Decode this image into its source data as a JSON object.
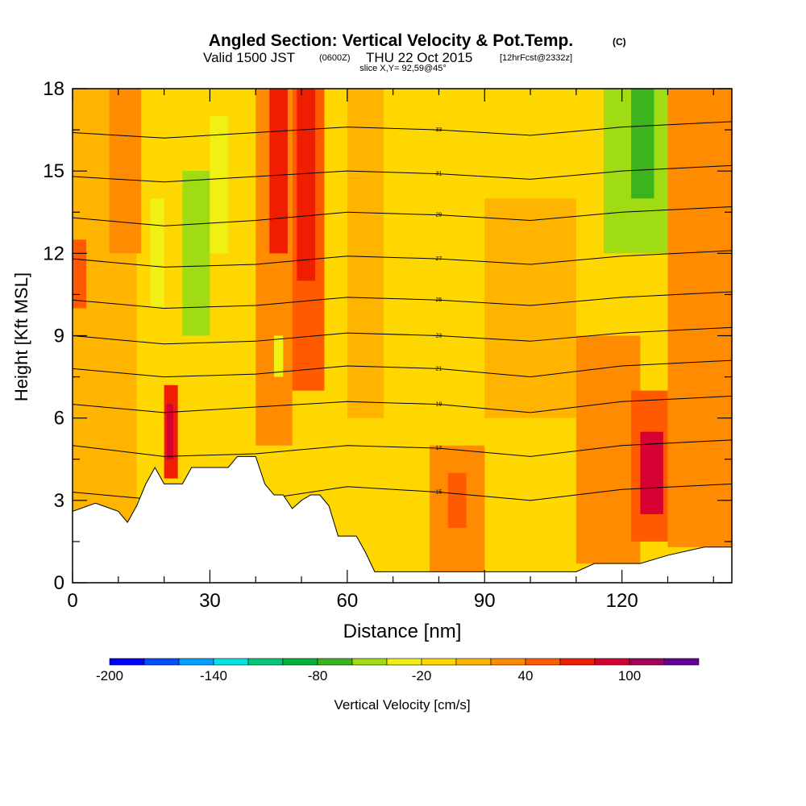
{
  "header": {
    "title": "Angled Section: Vertical Velocity & Pot.Temp.",
    "title_unit": "(C)",
    "valid_prefix": "Valid 1500 JST",
    "valid_utc": "(0600Z)",
    "valid_date": "THU 22 Oct 2015",
    "forecast": "[12hrFcst@2332z]",
    "slice": "slice X,Y= 92,59@45°"
  },
  "chart_data": {
    "type": "heatmap",
    "xlabel": "Distance [nm]",
    "ylabel": "Height [Kft MSL]",
    "xlim": [
      0,
      144
    ],
    "ylim": [
      0,
      18
    ],
    "xticks": [
      0,
      30,
      60,
      90,
      120
    ],
    "yticks": [
      0,
      3,
      6,
      9,
      12,
      15,
      18
    ],
    "colorbar": {
      "label": "Vertical Velocity [cm/s]",
      "range": [
        -200,
        130
      ],
      "step": 20,
      "tick_labels": [
        -200,
        -140,
        -80,
        -20,
        40,
        100
      ],
      "colors": [
        "#0000ff",
        "#0050ff",
        "#00a0ff",
        "#00e6e6",
        "#00c878",
        "#00b43c",
        "#3cb41e",
        "#a0dc14",
        "#f0f014",
        "#ffd700",
        "#ffb400",
        "#ff8c00",
        "#ff5a00",
        "#f01e00",
        "#d70032",
        "#a0005a",
        "#640096"
      ]
    },
    "terrain_height_kft": [
      [
        0,
        2.6
      ],
      [
        5,
        2.9
      ],
      [
        10,
        2.6
      ],
      [
        12,
        2.2
      ],
      [
        14,
        2.8
      ],
      [
        16,
        3.6
      ],
      [
        18,
        4.2
      ],
      [
        20,
        3.6
      ],
      [
        22,
        3.6
      ],
      [
        24,
        3.6
      ],
      [
        26,
        4.2
      ],
      [
        30,
        4.2
      ],
      [
        34,
        4.2
      ],
      [
        36,
        4.6
      ],
      [
        40,
        4.6
      ],
      [
        42,
        3.6
      ],
      [
        44,
        3.2
      ],
      [
        46,
        3.2
      ],
      [
        48,
        2.7
      ],
      [
        50,
        3.0
      ],
      [
        52,
        3.2
      ],
      [
        54,
        3.2
      ],
      [
        56,
        2.8
      ],
      [
        58,
        1.7
      ],
      [
        60,
        1.7
      ],
      [
        62,
        1.7
      ],
      [
        64,
        1.1
      ],
      [
        66,
        0.4
      ],
      [
        70,
        0.4
      ],
      [
        80,
        0.4
      ],
      [
        90,
        0.4
      ],
      [
        100,
        0.4
      ],
      [
        110,
        0.4
      ],
      [
        114,
        0.7
      ],
      [
        124,
        0.7
      ],
      [
        130,
        1.0
      ],
      [
        138,
        1.3
      ],
      [
        144,
        1.3
      ]
    ],
    "theta_contours": [
      {
        "label": "15",
        "points": [
          [
            0,
            3.3
          ],
          [
            20,
            3.0
          ],
          [
            40,
            3.0
          ],
          [
            60,
            3.5
          ],
          [
            80,
            3.3
          ],
          [
            100,
            3.0
          ],
          [
            120,
            3.4
          ],
          [
            144,
            3.6
          ]
        ]
      },
      {
        "label": "17",
        "points": [
          [
            0,
            5.0
          ],
          [
            20,
            4.6
          ],
          [
            40,
            4.7
          ],
          [
            60,
            5.0
          ],
          [
            80,
            4.9
          ],
          [
            100,
            4.6
          ],
          [
            120,
            5.0
          ],
          [
            144,
            5.2
          ]
        ]
      },
      {
        "label": "19",
        "points": [
          [
            0,
            6.5
          ],
          [
            20,
            6.2
          ],
          [
            40,
            6.4
          ],
          [
            60,
            6.6
          ],
          [
            80,
            6.5
          ],
          [
            100,
            6.2
          ],
          [
            120,
            6.6
          ],
          [
            144,
            6.8
          ]
        ]
      },
      {
        "label": "21",
        "points": [
          [
            0,
            7.8
          ],
          [
            20,
            7.5
          ],
          [
            40,
            7.6
          ],
          [
            60,
            7.9
          ],
          [
            80,
            7.8
          ],
          [
            100,
            7.5
          ],
          [
            120,
            7.9
          ],
          [
            144,
            8.1
          ]
        ]
      },
      {
        "label": "23",
        "points": [
          [
            0,
            9.0
          ],
          [
            20,
            8.7
          ],
          [
            40,
            8.8
          ],
          [
            60,
            9.1
          ],
          [
            80,
            9.0
          ],
          [
            100,
            8.8
          ],
          [
            120,
            9.1
          ],
          [
            144,
            9.3
          ]
        ]
      },
      {
        "label": "25",
        "points": [
          [
            0,
            10.3
          ],
          [
            20,
            10.0
          ],
          [
            40,
            10.1
          ],
          [
            60,
            10.4
          ],
          [
            80,
            10.3
          ],
          [
            100,
            10.1
          ],
          [
            120,
            10.4
          ],
          [
            144,
            10.6
          ]
        ]
      },
      {
        "label": "27",
        "points": [
          [
            0,
            11.8
          ],
          [
            20,
            11.5
          ],
          [
            40,
            11.6
          ],
          [
            60,
            11.9
          ],
          [
            80,
            11.8
          ],
          [
            100,
            11.6
          ],
          [
            120,
            11.9
          ],
          [
            144,
            12.1
          ]
        ]
      },
      {
        "label": "29",
        "points": [
          [
            0,
            13.3
          ],
          [
            20,
            13.0
          ],
          [
            40,
            13.2
          ],
          [
            60,
            13.5
          ],
          [
            80,
            13.4
          ],
          [
            100,
            13.2
          ],
          [
            120,
            13.5
          ],
          [
            144,
            13.7
          ]
        ]
      },
      {
        "label": "31",
        "points": [
          [
            0,
            14.8
          ],
          [
            20,
            14.6
          ],
          [
            40,
            14.8
          ],
          [
            60,
            15.0
          ],
          [
            80,
            14.9
          ],
          [
            100,
            14.7
          ],
          [
            120,
            15.0
          ],
          [
            144,
            15.2
          ]
        ]
      },
      {
        "label": "33",
        "points": [
          [
            0,
            16.4
          ],
          [
            20,
            16.2
          ],
          [
            40,
            16.4
          ],
          [
            60,
            16.6
          ],
          [
            80,
            16.5
          ],
          [
            100,
            16.3
          ],
          [
            120,
            16.6
          ],
          [
            144,
            16.8
          ]
        ]
      }
    ],
    "velocity_cells": [
      {
        "x0": 0,
        "x1": 144,
        "y0": 0,
        "y1": 18,
        "v": -20
      },
      {
        "x0": 0,
        "x1": 14,
        "y0": 0,
        "y1": 18,
        "v": 0
      },
      {
        "x0": 0,
        "x1": 3,
        "y0": 10,
        "y1": 12.5,
        "v": 40
      },
      {
        "x0": 8,
        "x1": 15,
        "y0": 12,
        "y1": 18,
        "v": 20
      },
      {
        "x0": 17,
        "x1": 20,
        "y0": 10,
        "y1": 14,
        "v": -40
      },
      {
        "x0": 20,
        "x1": 23,
        "y0": 3.8,
        "y1": 7.2,
        "v": 60
      },
      {
        "x0": 20.5,
        "x1": 22,
        "y0": 4.5,
        "y1": 6.5,
        "v": 80
      },
      {
        "x0": 24,
        "x1": 30,
        "y0": 9,
        "y1": 15,
        "v": -60
      },
      {
        "x0": 30,
        "x1": 34,
        "y0": 12,
        "y1": 17,
        "v": -40
      },
      {
        "x0": 40,
        "x1": 48,
        "y0": 5,
        "y1": 18,
        "v": 20
      },
      {
        "x0": 43,
        "x1": 47,
        "y0": 12,
        "y1": 18,
        "v": 60
      },
      {
        "x0": 48,
        "x1": 55,
        "y0": 7,
        "y1": 18,
        "v": 40
      },
      {
        "x0": 49,
        "x1": 53,
        "y0": 11,
        "y1": 18,
        "v": 60
      },
      {
        "x0": 44,
        "x1": 46,
        "y0": 7.5,
        "y1": 9,
        "v": -40
      },
      {
        "x0": 60,
        "x1": 68,
        "y0": 6,
        "y1": 18,
        "v": 0
      },
      {
        "x0": 68,
        "x1": 80,
        "y0": 8,
        "y1": 18,
        "v": -20
      },
      {
        "x0": 78,
        "x1": 90,
        "y0": 0.4,
        "y1": 5,
        "v": 20
      },
      {
        "x0": 82,
        "x1": 86,
        "y0": 2,
        "y1": 4,
        "v": 40
      },
      {
        "x0": 90,
        "x1": 110,
        "y0": 6,
        "y1": 14,
        "v": 0
      },
      {
        "x0": 110,
        "x1": 124,
        "y0": 0.7,
        "y1": 9,
        "v": 20
      },
      {
        "x0": 122,
        "x1": 130,
        "y0": 1.5,
        "y1": 7,
        "v": 40
      },
      {
        "x0": 124,
        "x1": 129,
        "y0": 2.5,
        "y1": 5.5,
        "v": 80
      },
      {
        "x0": 116,
        "x1": 130,
        "y0": 12,
        "y1": 18,
        "v": -60
      },
      {
        "x0": 122,
        "x1": 127,
        "y0": 14,
        "y1": 18,
        "v": -80
      },
      {
        "x0": 130,
        "x1": 144,
        "y0": 1.3,
        "y1": 18,
        "v": 20
      }
    ]
  }
}
